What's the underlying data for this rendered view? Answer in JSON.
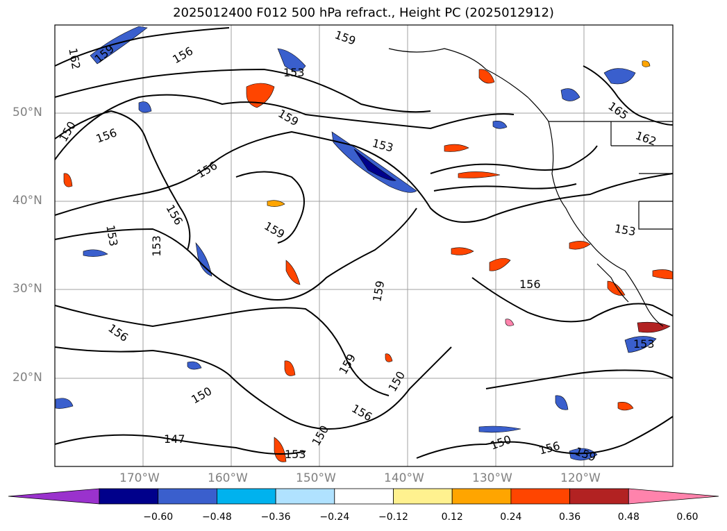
{
  "title": "2025012400 F012 500 hPa refract., Height PC (2025012912)",
  "axes": {
    "lat_labels": [
      "50°N",
      "40°N",
      "30°N",
      "20°N"
    ],
    "lon_labels": [
      "170°W",
      "160°W",
      "150°W",
      "140°W",
      "130°W",
      "120°W"
    ]
  },
  "contour_labels": [
    "162",
    "159",
    "156",
    "153",
    "150",
    "147",
    "165"
  ],
  "colorbar": {
    "colors": [
      "#9a32cd",
      "#00008b",
      "#3a5fcd",
      "#00b2ee",
      "#b0e2ff",
      "#ffffff",
      "#fff18f",
      "#ffa500",
      "#ff4500",
      "#b22222",
      "#ff83ac"
    ],
    "tick_labels": [
      "−0.60",
      "−0.48",
      "−0.36",
      "−0.24",
      "−0.12",
      "0.12",
      "0.24",
      "0.36",
      "0.48",
      "0.60"
    ]
  },
  "chart_data": {
    "type": "heatmap",
    "title": "2025012400 F012 500 hPa refract., Height PC (2025012912)",
    "x_ticks": [
      "170°W",
      "160°W",
      "150°W",
      "140°W",
      "130°W",
      "120°W"
    ],
    "y_ticks": [
      "50°N",
      "40°N",
      "30°N",
      "20°N"
    ],
    "contour_values": [
      147,
      150,
      153,
      156,
      159,
      162,
      165
    ],
    "colorbar_range": [
      -0.6,
      0.6
    ],
    "grid": true
  }
}
